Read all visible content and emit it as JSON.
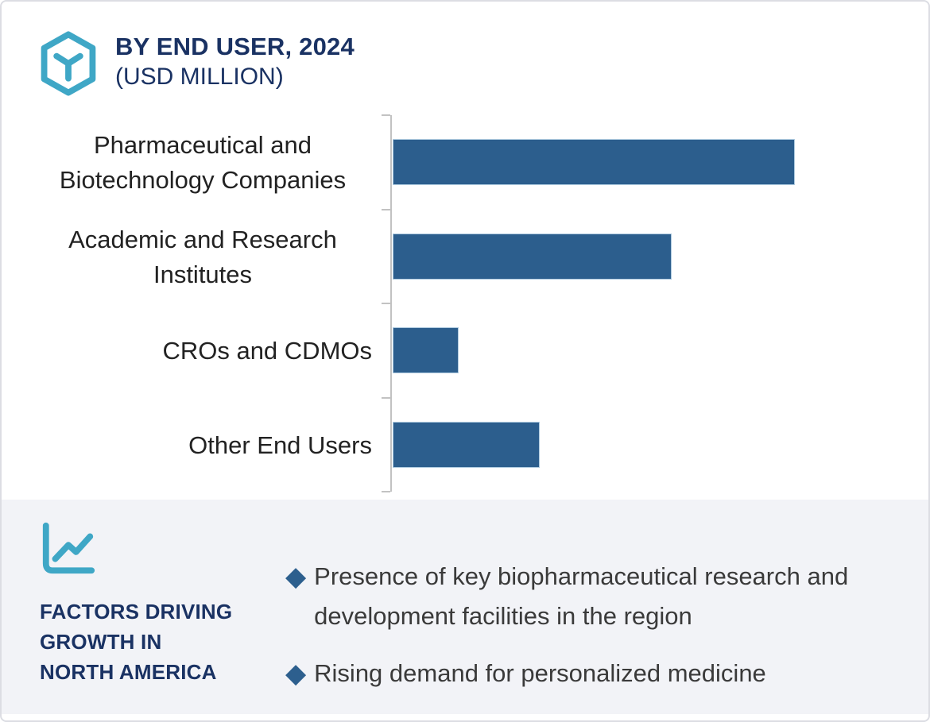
{
  "palette": {
    "teal_accent": "#3fa7c6",
    "navy_heading": "#1a3263",
    "bar_blue": "#2c5e8d",
    "bar_border": "#aecadf",
    "axis_gray": "#c2c2c2",
    "panel_background": "#f2f3f7",
    "category_text": "#222222",
    "bullet_text": "#3a3a3a"
  },
  "header": {
    "icon": "hexagon-cube-icon",
    "title_line1": "BY END USER, 2024",
    "title_line2": "(USD MILLION)"
  },
  "chart_data": {
    "type": "bar",
    "orientation": "horizontal",
    "title": "BY END USER, 2024",
    "units": "USD MILLION",
    "categories": [
      "Pharmaceutical and Biotechnology Companies",
      "Academic and Research Institutes",
      "CROs and CDMOs",
      "Other End Users"
    ],
    "values_pct_of_max": [
      100,
      69.4,
      16.4,
      36.6
    ],
    "value_axis_labeled": false,
    "data_labels_shown": false,
    "gridlines": "none",
    "legend": "none",
    "bar_color": "#2c5e8d",
    "axis_color": "#c2c2c2"
  },
  "factors_panel": {
    "icon": "line-chart-icon",
    "heading_lines": [
      "FACTORS DRIVING",
      "GROWTH IN",
      "NORTH AMERICA"
    ],
    "bullet_icon": "◆",
    "bullets": [
      "Presence of key biopharmaceutical research and development facilities in the region",
      "Rising demand for personalized medicine"
    ]
  }
}
